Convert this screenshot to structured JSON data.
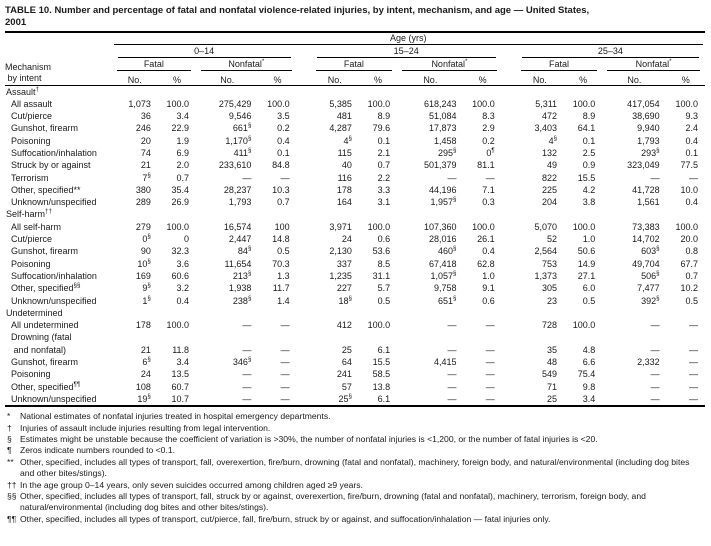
{
  "colors": {
    "text": "#1a1a1a",
    "background": "#ffffff",
    "rule": "#000000"
  },
  "title": {
    "line1": "TABLE 10. Number and percentage of fatal and nonfatal violence-related injuries, by intent, mechanism, and age — United States,",
    "line2": "2001"
  },
  "table": {
    "age_axis_label": "Age (yrs)",
    "stub_header": "Mechanism\n by intent",
    "age_groups": [
      "0–14",
      "15–24",
      "25–34"
    ],
    "outcome_labels": [
      "Fatal",
      "Nonfatal"
    ],
    "nonfatal_marker": "*",
    "measure_labels": [
      "No.",
      "%"
    ],
    "sections": [
      {
        "label": "Assault†",
        "rows": [
          {
            "label": "All assault",
            "cells": [
              "1,073",
              "100.0",
              "275,429",
              "100.0",
              "5,385",
              "100.0",
              "618,243",
              "100.0",
              "5,311",
              "100.0",
              "417,054",
              "100.0"
            ]
          },
          {
            "label": "Cut/pierce",
            "cells": [
              "36",
              "3.4",
              "9,546",
              "3.5",
              "481",
              "8.9",
              "51,084",
              "8.3",
              "472",
              "8.9",
              "38,690",
              "9.3"
            ]
          },
          {
            "label": "Gunshot, firearm",
            "cells": [
              "246",
              "22.9",
              "661§",
              "0.2",
              "4,287",
              "79.6",
              "17,873",
              "2.9",
              "3,403",
              "64.1",
              "9,940",
              "2.4"
            ]
          },
          {
            "label": "Poisoning",
            "cells": [
              "20",
              "1.9",
              "1,170§",
              "0.4",
              "4§",
              "0.1",
              "1,458",
              "0.2",
              "4§",
              "0.1",
              "1,793",
              "0.4"
            ]
          },
          {
            "label": "Suffocation/inhalation",
            "cells": [
              "74",
              "6.9",
              "411§",
              "0.1",
              "115",
              "2.1",
              "295§",
              "0¶",
              "132",
              "2.5",
              "293§",
              "0.1"
            ]
          },
          {
            "label": "Struck by or against",
            "cells": [
              "21",
              "2.0",
              "233,610",
              "84.8",
              "40",
              "0.7",
              "501,379",
              "81.1",
              "49",
              "0.9",
              "323,049",
              "77.5"
            ]
          },
          {
            "label": "Terrorism",
            "cells": [
              "7§",
              "0.7",
              "—",
              "—",
              "116",
              "2.2",
              "—",
              "—",
              "822",
              "15.5",
              "—",
              "—"
            ]
          },
          {
            "label": "Other, specified**",
            "cells": [
              "380",
              "35.4",
              "28,237",
              "10.3",
              "178",
              "3.3",
              "44,196",
              "7.1",
              "225",
              "4.2",
              "41,728",
              "10.0"
            ]
          },
          {
            "label": "Unknown/unspecified",
            "cells": [
              "289",
              "26.9",
              "1,793",
              "0.7",
              "164",
              "3.1",
              "1,957§",
              "0.3",
              "204",
              "3.8",
              "1,561",
              "0.4"
            ]
          }
        ]
      },
      {
        "label": "Self-harm††",
        "rows": [
          {
            "label": "All self-harm",
            "cells": [
              "279",
              "100.0",
              "16,574",
              "100",
              "3,971",
              "100.0",
              "107,360",
              "100.0",
              "5,070",
              "100.0",
              "73,383",
              "100.0"
            ]
          },
          {
            "label": "Cut/pierce",
            "cells": [
              "0§",
              "0",
              "2,447",
              "14.8",
              "24",
              "0.6",
              "28,016",
              "26.1",
              "52",
              "1.0",
              "14,702",
              "20.0"
            ]
          },
          {
            "label": "Gunshot, firearm",
            "cells": [
              "90",
              "32.3",
              "84§",
              "0.5",
              "2,130",
              "53.6",
              "460§",
              "0.4",
              "2,564",
              "50.6",
              "603§",
              "0.8"
            ]
          },
          {
            "label": "Poisoning",
            "cells": [
              "10§",
              "3.6",
              "11,654",
              "70.3",
              "337",
              "8.5",
              "67,418",
              "62.8",
              "753",
              "14.9",
              "49,704",
              "67.7"
            ]
          },
          {
            "label": "Suffocation/inhalation",
            "cells": [
              "169",
              "60.6",
              "213§",
              "1.3",
              "1,235",
              "31.1",
              "1,057§",
              "1.0",
              "1,373",
              "27.1",
              "506§",
              "0.7"
            ]
          },
          {
            "label": "Other, specified§§",
            "cells": [
              "9§",
              "3.2",
              "1,938",
              "11.7",
              "227",
              "5.7",
              "9,758",
              "9.1",
              "305",
              "6.0",
              "7,477",
              "10.2"
            ]
          },
          {
            "label": "Unknown/unspecified",
            "cells": [
              "1§",
              "0.4",
              "238§",
              "1.4",
              "18§",
              "0.5",
              "651§",
              "0.6",
              "23",
              "0.5",
              "392§",
              "0.5"
            ]
          }
        ]
      },
      {
        "label": "Undetermined",
        "rows": [
          {
            "label": "All undetermined",
            "cells": [
              "178",
              "100.0",
              "—",
              "—",
              "412",
              "100.0",
              "—",
              "—",
              "728",
              "100.0",
              "—",
              "—"
            ]
          },
          {
            "label": "Drowning (fatal\n and nonfatal)",
            "cells": [
              "21",
              "11.8",
              "—",
              "—",
              "25",
              "6.1",
              "—",
              "—",
              "35",
              "4.8",
              "—",
              "—"
            ]
          },
          {
            "label": "Gunshot, firearm",
            "cells": [
              "6§",
              "3.4",
              "346§",
              "—",
              "64",
              "15.5",
              "4,415",
              "—",
              "48",
              "6.6",
              "2,332",
              "—"
            ]
          },
          {
            "label": "Poisoning",
            "cells": [
              "24",
              "13.5",
              "—",
              "—",
              "241",
              "58.5",
              "—",
              "—",
              "549",
              "75.4",
              "—",
              "—"
            ]
          },
          {
            "label": "Other, specified¶¶",
            "cells": [
              "108",
              "60.7",
              "—",
              "—",
              "57",
              "13.8",
              "—",
              "—",
              "71",
              "9.8",
              "—",
              "—"
            ]
          },
          {
            "label": "Unknown/unspecified",
            "cells": [
              "19§",
              "10.7",
              "—",
              "—",
              "25§",
              "6.1",
              "—",
              "—",
              "25",
              "3.4",
              "—",
              "—"
            ]
          }
        ]
      }
    ]
  },
  "footnotes": [
    {
      "marker": "*",
      "text": "National estimates of nonfatal injuries treated in hospital emergency departments."
    },
    {
      "marker": "†",
      "text": "Injuries of assault include injuries resulting from legal intervention."
    },
    {
      "marker": "§",
      "text": "Estimates might be unstable because the coefficient of variation is >30%, the number of nonfatal injuries is <1,200, or the number of fatal injuries is <20."
    },
    {
      "marker": "¶",
      "text": "Zeros indicate numbers rounded to <0.1."
    },
    {
      "marker": "**",
      "text": "Other, specified, includes all types of transport, fall, overexertion, fire/burn, drowning (fatal and nonfatal), machinery, foreign body, and natural/environmental (including dog bites and other bites/stings)."
    },
    {
      "marker": "††",
      "text": "In the age group 0–14 years, only seven suicides occurred among children aged ≥9 years."
    },
    {
      "marker": "§§",
      "text": "Other, specified, includes all types of transport, fall, struck by or against, overexertion, fire/burn, drowning (fatal and nonfatal), machinery, terrorism, foreign body, and natural/environmental (including dog bites and other bites/stings)."
    },
    {
      "marker": "¶¶",
      "text": "Other, specified, includes all types of transport, cut/pierce, fall, fire/burn, struck by or against, and suffocation/inhalation — fatal injuries only."
    }
  ]
}
